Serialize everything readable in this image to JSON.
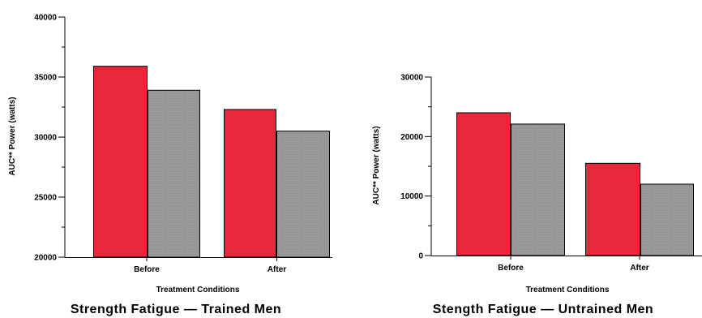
{
  "colors": {
    "red": "#e8283a",
    "gray": "#999999",
    "axis": "#000000"
  },
  "chart_data": [
    {
      "type": "bar",
      "title": "Strength Fatigue — Trained Men",
      "xlabel": "Treatment Conditions",
      "ylabel": "AUC** Power (watts)",
      "ylim": [
        20000,
        40000
      ],
      "yticks": [
        20000,
        25000,
        30000,
        35000,
        40000
      ],
      "ytick_labels": [
        "20000",
        "25000",
        "30000",
        "35000",
        "40000"
      ],
      "categories": [
        "Before",
        "After"
      ],
      "series": [
        {
          "values": [
            35900,
            32300
          ]
        },
        {
          "values": [
            33900,
            30500
          ]
        }
      ],
      "grid": false
    },
    {
      "type": "bar",
      "title": "Stength Fatigue — Untrained Men",
      "xlabel": "Treatment Conditions",
      "ylabel": "AUC** Power (watts)",
      "ylim": [
        0,
        30000
      ],
      "yticks": [
        0,
        10000,
        20000,
        30000
      ],
      "ytick_labels": [
        "0",
        "10000",
        "20000",
        "30000"
      ],
      "categories": [
        "Before",
        "After"
      ],
      "series": [
        {
          "values": [
            24000,
            15500
          ]
        },
        {
          "values": [
            22100,
            12000
          ]
        }
      ],
      "grid": false
    }
  ]
}
